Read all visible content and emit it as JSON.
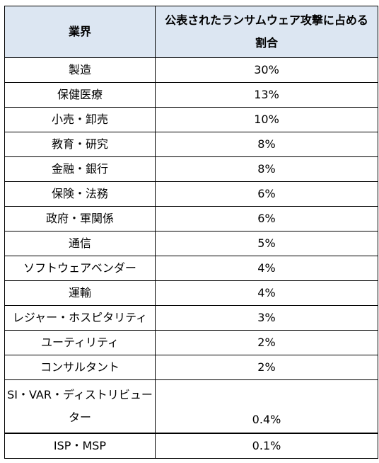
{
  "table": {
    "headers": {
      "industry": "業界",
      "share": "公表されたランサムウェア攻撃に占める割合"
    },
    "rows": [
      {
        "industry": "製造",
        "share": "30%"
      },
      {
        "industry": "保健医療",
        "share": "13%"
      },
      {
        "industry": "小売・卸売",
        "share": "10%"
      },
      {
        "industry": "教育・研究",
        "share": "8%"
      },
      {
        "industry": "金融・銀行",
        "share": "8%"
      },
      {
        "industry": "保険・法務",
        "share": "6%"
      },
      {
        "industry": "政府・軍関係",
        "share": "6%"
      },
      {
        "industry": "通信",
        "share": "5%"
      },
      {
        "industry": "ソフトウェアベンダー",
        "share": "4%"
      },
      {
        "industry": "運輸",
        "share": "4%"
      },
      {
        "industry": "レジャー・ホスピタリティ",
        "share": "3%"
      },
      {
        "industry": "ユーティリティ",
        "share": "2%"
      },
      {
        "industry": "コンサルタント",
        "share": "2%"
      },
      {
        "industry": "SI・VAR・ディストリビューター",
        "share": "0.4%"
      },
      {
        "industry": "ISP・MSP",
        "share": "0.1%"
      }
    ]
  }
}
